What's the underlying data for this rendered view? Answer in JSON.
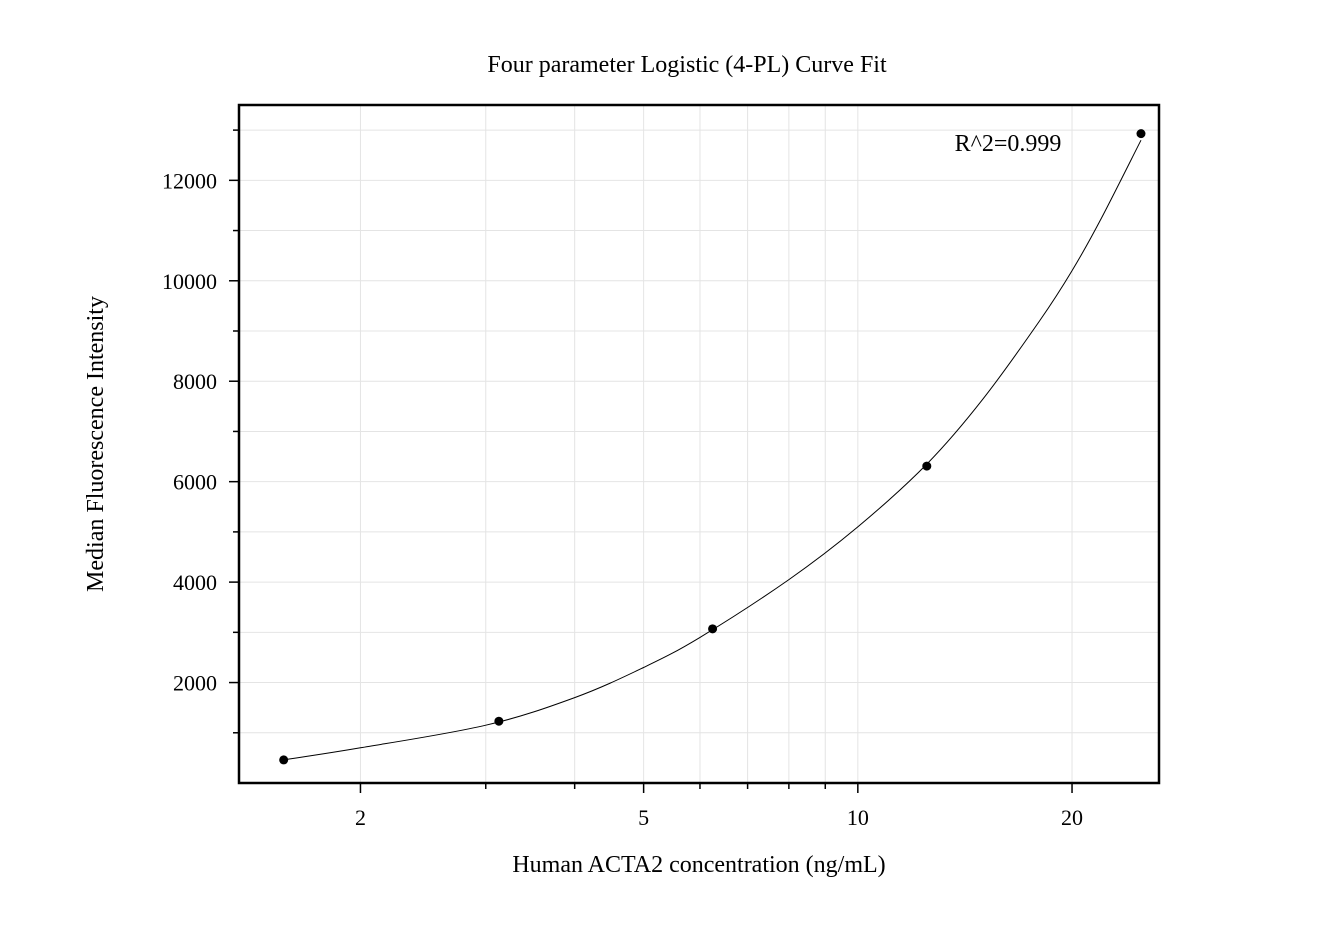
{
  "chart_data": {
    "type": "scatter",
    "title": "Four parameter Logistic (4-PL) Curve Fit",
    "xlabel": "Human ACTA2 concentration (ng/mL)",
    "ylabel": "Median Fluorescence Intensity",
    "x_scale": "log",
    "xlim": [
      1.35,
      26.5
    ],
    "ylim": [
      0,
      13500
    ],
    "x_ticks": [
      2,
      5,
      10,
      20
    ],
    "x_tick_labels": [
      "2",
      "5",
      "10",
      "20"
    ],
    "y_ticks": [
      2000,
      4000,
      6000,
      8000,
      10000,
      12000
    ],
    "y_tick_labels": [
      "2000",
      "4000",
      "6000",
      "8000",
      "10000",
      "12000"
    ],
    "grid": true,
    "annotation": "R^2=0.999",
    "points": {
      "x": [
        1.56,
        3.13,
        6.25,
        12.5,
        25
      ],
      "y": [
        460,
        1230,
        3070,
        6310,
        12930
      ]
    },
    "fit_curve": {
      "type": "4-PL",
      "x": [
        1.56,
        2,
        3,
        4,
        5,
        6,
        8,
        10,
        12.5,
        15,
        18,
        20,
        22,
        25
      ],
      "y": [
        460,
        700,
        1150,
        1700,
        2300,
        2900,
        4050,
        5100,
        6350,
        7650,
        9200,
        10200,
        11250,
        12800
      ]
    }
  }
}
